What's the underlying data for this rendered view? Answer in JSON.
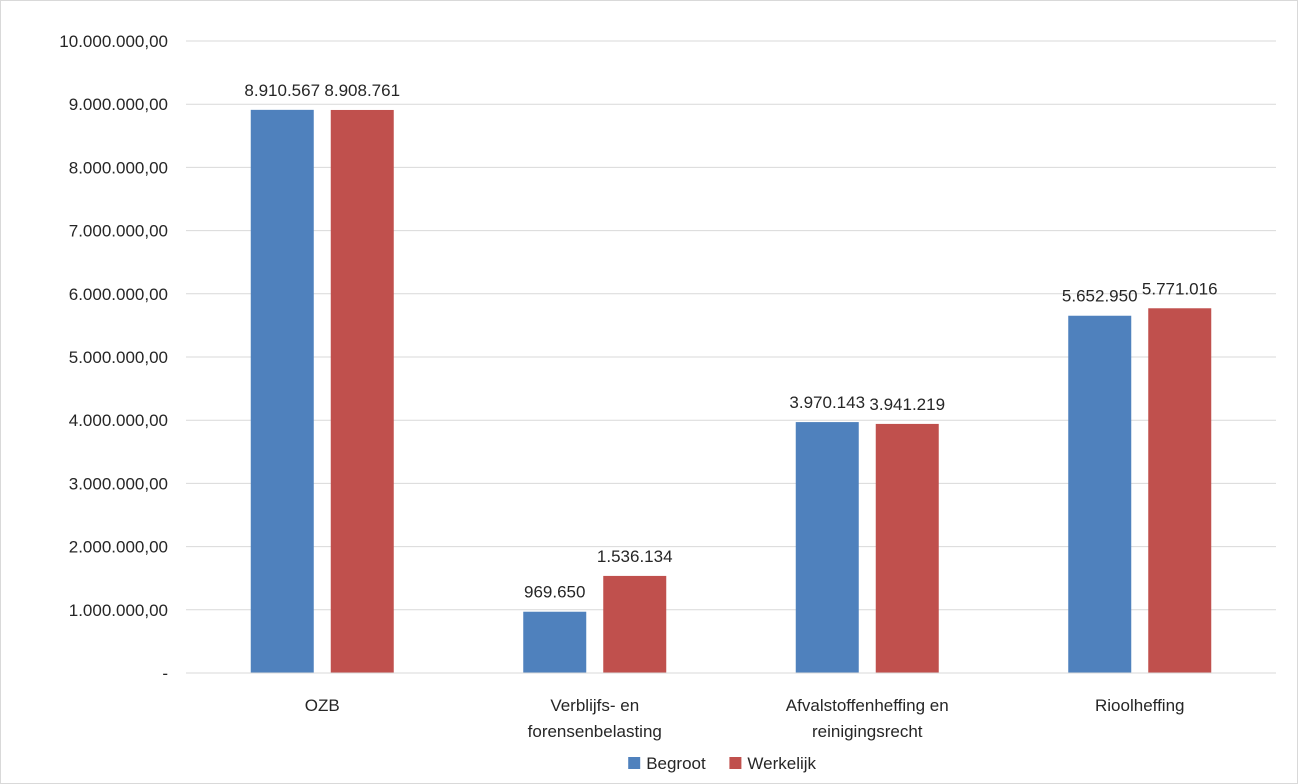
{
  "chart_data": {
    "type": "bar",
    "title": "",
    "xlabel": "",
    "ylabel": "",
    "categories": [
      [
        "OZB"
      ],
      [
        "Verblijfs- en",
        "forensenbelasting"
      ],
      [
        "Afvalstoffenheffing en",
        "reinigingsrecht"
      ],
      [
        "Rioolheffing"
      ]
    ],
    "series": [
      {
        "name": "Begroot",
        "color": "#4f81bd",
        "values": [
          8910567,
          969650,
          3970143,
          5652950
        ],
        "labels": [
          "8.910.567",
          "969.650",
          "3.970.143",
          "5.652.950"
        ]
      },
      {
        "name": "Werkelijk",
        "color": "#c0504d",
        "values": [
          8908761,
          1536134,
          3941219,
          5771016
        ],
        "labels": [
          "8.908.761",
          "1.536.134",
          "3.941.219",
          "5.771.016"
        ]
      }
    ],
    "ylim": [
      0,
      10000000
    ],
    "yticks": [
      {
        "value": 0,
        "label": "-"
      },
      {
        "value": 1000000,
        "label": "1.000.000,00"
      },
      {
        "value": 2000000,
        "label": "2.000.000,00"
      },
      {
        "value": 3000000,
        "label": "3.000.000,00"
      },
      {
        "value": 4000000,
        "label": "4.000.000,00"
      },
      {
        "value": 5000000,
        "label": "5.000.000,00"
      },
      {
        "value": 6000000,
        "label": "6.000.000,00"
      },
      {
        "value": 7000000,
        "label": "7.000.000,00"
      },
      {
        "value": 8000000,
        "label": "8.000.000,00"
      },
      {
        "value": 9000000,
        "label": "9.000.000,00"
      },
      {
        "value": 10000000,
        "label": "10.000.000,00"
      }
    ],
    "grid": true,
    "legend_position": "bottom"
  }
}
